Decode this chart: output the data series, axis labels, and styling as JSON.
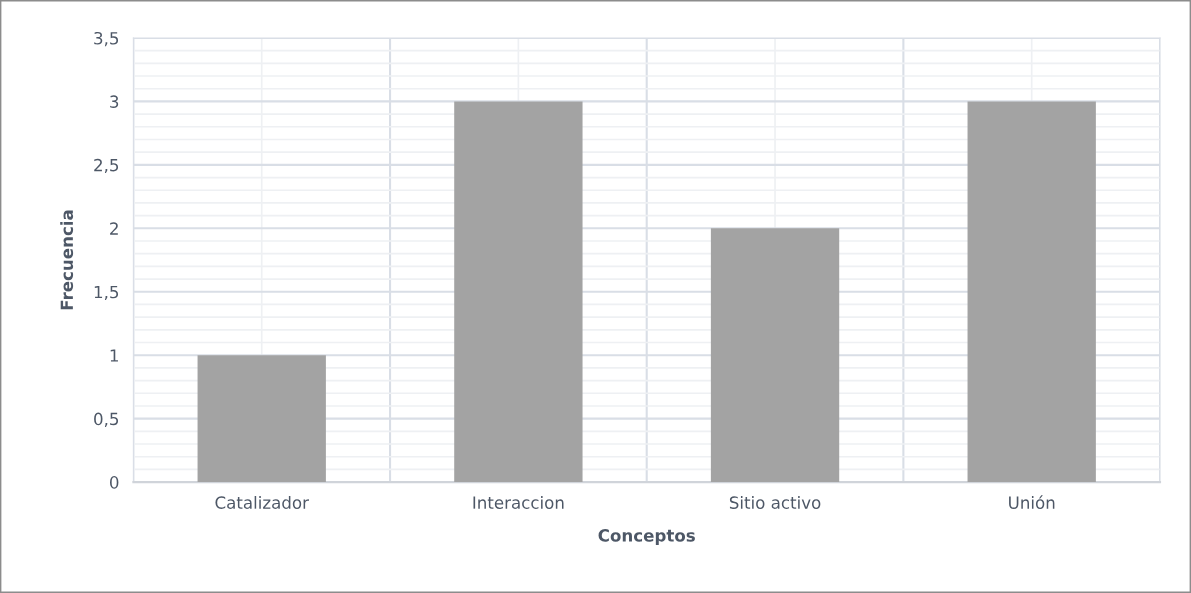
{
  "chart_data": {
    "type": "bar",
    "xlabel": "Conceptos",
    "ylabel": "Frecuencia",
    "categories": [
      "Catalizador",
      "Interaccion",
      "Sitio activo",
      "Unión"
    ],
    "values": [
      1,
      3,
      2,
      3
    ],
    "color": "#a3a3a3",
    "ylim": [
      0,
      3.5
    ],
    "yticks": [
      0,
      {
        "value": 0.5,
        "label": "0,5"
      },
      1,
      {
        "value": 1.5,
        "label": "1,5"
      },
      2,
      {
        "value": 2.5,
        "label": "2,5"
      },
      3,
      {
        "value": 3.5,
        "label": "3,5"
      }
    ],
    "grid": true
  }
}
